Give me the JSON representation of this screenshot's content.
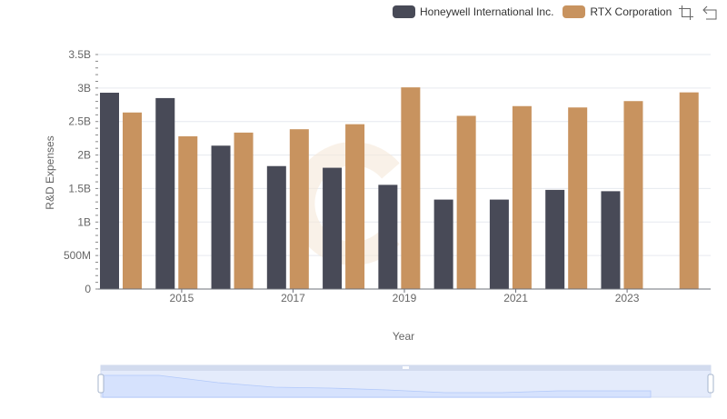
{
  "legend": {
    "items": [
      {
        "label": "Honeywell International Inc.",
        "color": "#484a57"
      },
      {
        "label": "RTX Corporation",
        "color": "#c8935f"
      }
    ]
  },
  "toolbox": {
    "icons": [
      "zoom-icon",
      "restore-icon"
    ]
  },
  "chart_data": {
    "type": "bar",
    "xlabel": "Year",
    "ylabel": "R&D Expenses",
    "ylim": [
      0,
      3500000000
    ],
    "y_ticks": [
      {
        "value": 0,
        "label": "0"
      },
      {
        "value": 500000000,
        "label": "500M"
      },
      {
        "value": 1000000000,
        "label": "1B"
      },
      {
        "value": 1500000000,
        "label": "1.5B"
      },
      {
        "value": 2000000000,
        "label": "2B"
      },
      {
        "value": 2500000000,
        "label": "2.5B"
      },
      {
        "value": 3000000000,
        "label": "3B"
      },
      {
        "value": 3500000000,
        "label": "3.5B"
      }
    ],
    "categories": [
      "2014",
      "2015",
      "2016",
      "2017",
      "2018",
      "2019",
      "2020",
      "2021",
      "2022",
      "2023",
      "2024"
    ],
    "x_tick_labels": [
      "2015",
      "2017",
      "2019",
      "2021",
      "2023"
    ],
    "series": [
      {
        "name": "Honeywell International Inc.",
        "color": "#484a57",
        "values": [
          2930000000,
          2850000000,
          2140000000,
          1835000000,
          1810000000,
          1555000000,
          1335000000,
          1335000000,
          1480000000,
          1460000000,
          null
        ]
      },
      {
        "name": "RTX Corporation",
        "color": "#c8935f",
        "values": [
          2635000000,
          2280000000,
          2335000000,
          2385000000,
          2460000000,
          3010000000,
          2585000000,
          2730000000,
          2710000000,
          2805000000,
          2935000000
        ]
      }
    ],
    "grid": true,
    "legend_position": "top-right",
    "data_zoom": {
      "start_percent": 0,
      "end_percent": 100
    }
  }
}
